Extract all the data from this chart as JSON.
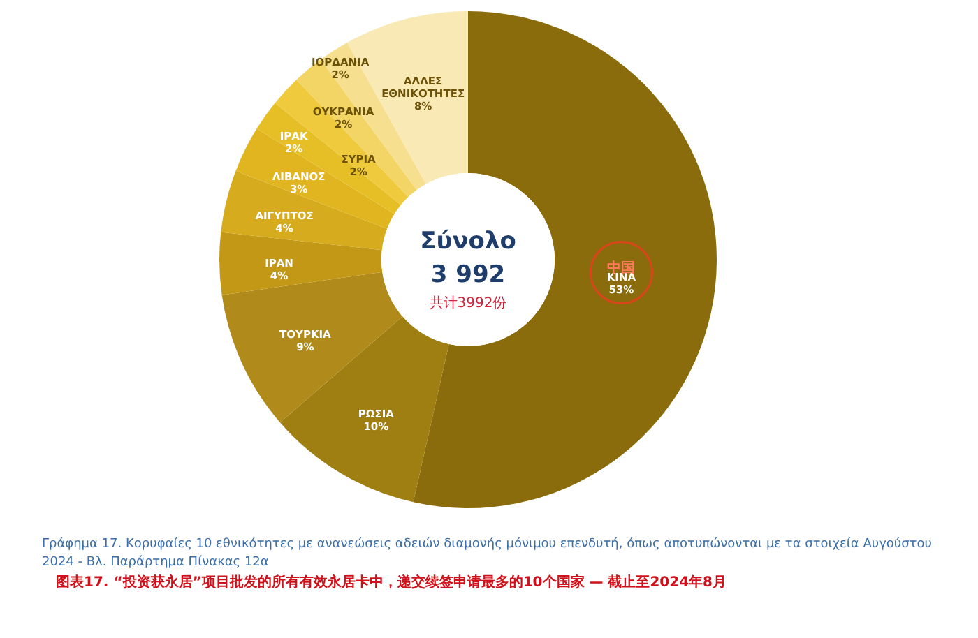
{
  "chart_data": {
    "type": "donut",
    "categories": [
      "ΚΙΝΑ",
      "ΡΩΣΙΑ",
      "ΤΟΥΡΚΙΑ",
      "ΙΡΑΝ",
      "ΑΙΓΥΠΤΟΣ",
      "ΛΙΒΑΝΟΣ",
      "ΙΡΑΚ",
      "ΣΥΡΙΑ",
      "ΟΥΚΡΑΝΙΑ",
      "ΙΟΡΔΑΝΙΑ",
      "ΑΛΛΕΣ ΕΘΝΙΚΟΤΗΤΕΣ"
    ],
    "values": [
      53,
      10,
      9,
      4,
      4,
      3,
      2,
      2,
      2,
      2,
      8
    ],
    "value_labels": [
      "53%",
      "10%",
      "9%",
      "4%",
      "4%",
      "3%",
      "2%",
      "2%",
      "2%",
      "2%",
      "8%"
    ],
    "colors": [
      "#8a6c0c",
      "#9f7e12",
      "#b08a1a",
      "#c49817",
      "#d6ab1e",
      "#e1b520",
      "#e6bf27",
      "#eeca3c",
      "#f3d565",
      "#f6df8e",
      "#f9e9b5"
    ],
    "annotations": [
      "Σύνολο",
      "3 992",
      "共计3992份",
      {
        "text": "中国",
        "x": "ΚΙΝΑ"
      },
      "Γράφημα 17. Κορυφαίες 10 εθνικότητες με ανανεώσεις αδειών διαμονής μόνιμου επενδυτή, όπως αποτυπώνονται με τα στοιχεία Αυγούστου 2024 - Βλ. Παράρτημα Πίνακας 12α",
      "图表17.  “投资获永居”项目批发的所有有效永居卡中，递交续签申请最多的10个国家 — 截止至2024年8月"
    ]
  }
}
